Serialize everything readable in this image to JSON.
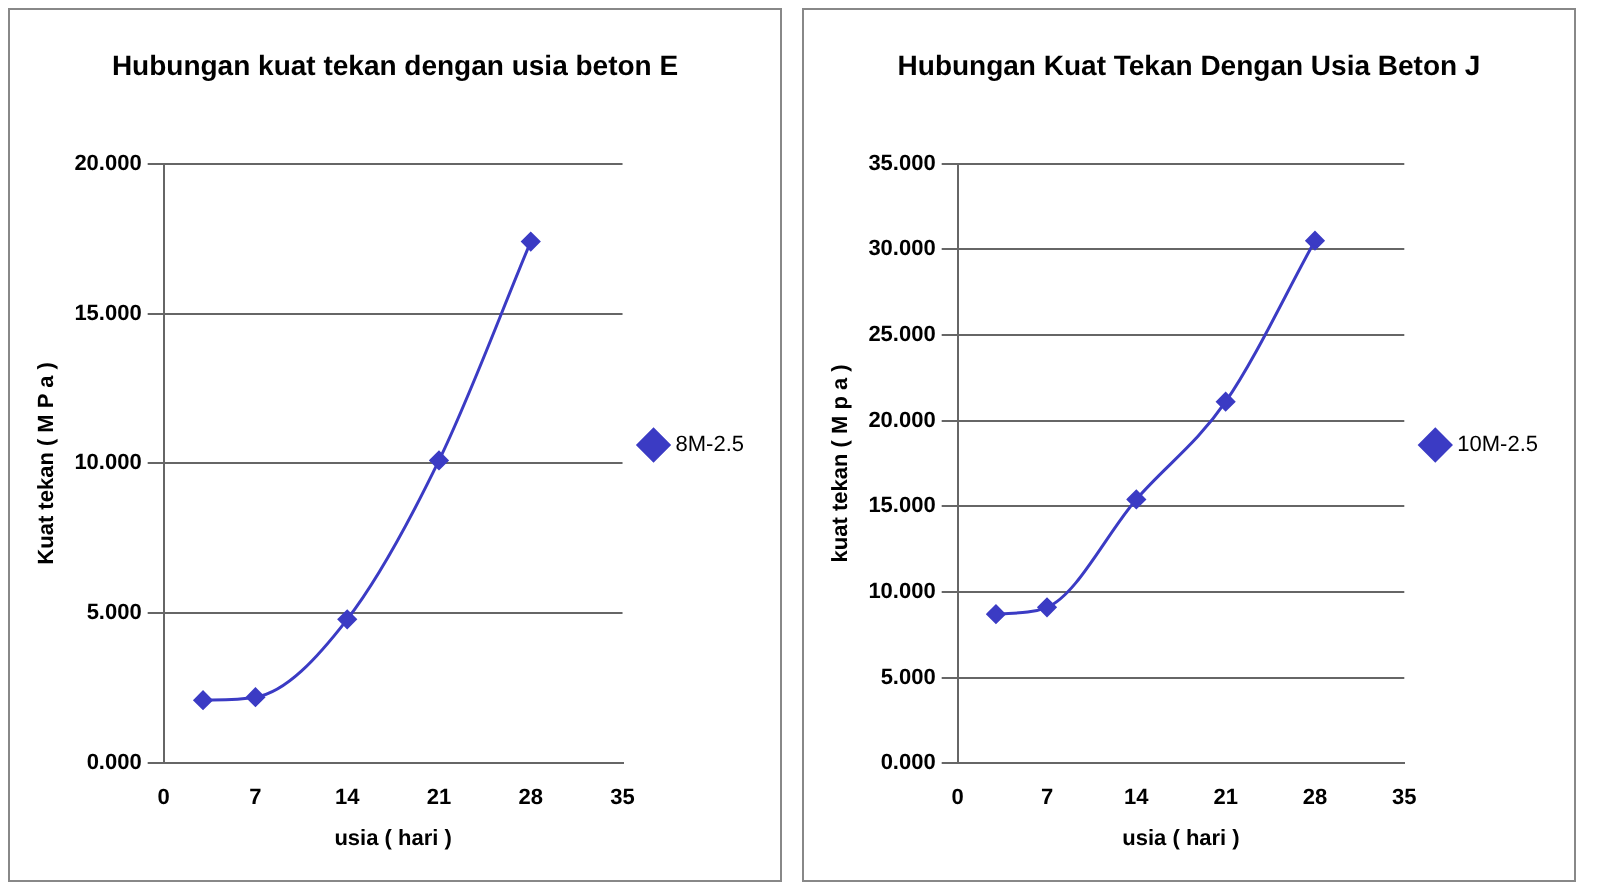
{
  "chart_data": [
    {
      "type": "line",
      "title": "Hubungan kuat tekan dengan usia beton E",
      "xlabel": "usia ( hari )",
      "ylabel": "Kuat tekan ( M P a )",
      "x": [
        3,
        7,
        14,
        21,
        28
      ],
      "series": [
        {
          "name": "8M-2.5",
          "color": "#3b3bc4",
          "values": [
            2.1,
            2.2,
            4.8,
            10.1,
            17.4
          ]
        }
      ],
      "xlim": [
        0,
        35
      ],
      "xticks": [
        0,
        7,
        14,
        21,
        28,
        35
      ],
      "ylim": [
        0,
        20
      ],
      "yticks": [
        {
          "value": 0,
          "label": "0.000"
        },
        {
          "value": 5,
          "label": "5.000"
        },
        {
          "value": 10,
          "label": "10.000"
        },
        {
          "value": 15,
          "label": "15.000"
        },
        {
          "value": 20,
          "label": "20.000"
        }
      ],
      "grid": "y",
      "legend": "right",
      "marker": "diamond",
      "line_style": "solid"
    },
    {
      "type": "line",
      "title": "Hubungan Kuat Tekan Dengan Usia Beton J",
      "xlabel": "usia ( hari )",
      "ylabel": "kuat tekan ( M p a )",
      "x": [
        3,
        7,
        14,
        21,
        28
      ],
      "series": [
        {
          "name": "10M-2.5",
          "color": "#3b3bc4",
          "values": [
            8.7,
            9.1,
            15.4,
            21.1,
            30.5
          ]
        }
      ],
      "xlim": [
        0,
        35
      ],
      "xticks": [
        0,
        7,
        14,
        21,
        28,
        35
      ],
      "ylim": [
        0,
        35
      ],
      "yticks": [
        {
          "value": 0,
          "label": "0.000"
        },
        {
          "value": 5,
          "label": "5.000"
        },
        {
          "value": 10,
          "label": "10.000"
        },
        {
          "value": 15,
          "label": "15.000"
        },
        {
          "value": 20,
          "label": "20.000"
        },
        {
          "value": 25,
          "label": "25.000"
        },
        {
          "value": 30,
          "label": "30.000"
        },
        {
          "value": 35,
          "label": "35.000"
        }
      ],
      "grid": "y",
      "legend": "right",
      "marker": "diamond",
      "line_style": "solid"
    }
  ]
}
